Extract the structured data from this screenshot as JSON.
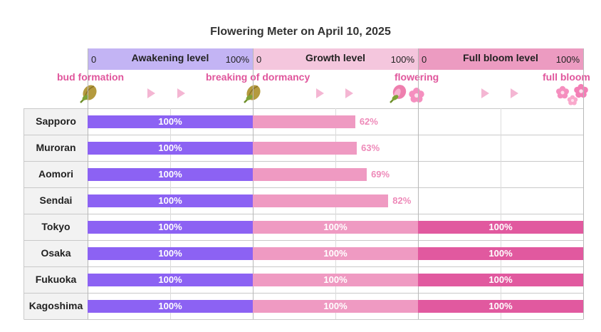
{
  "title": "Flowering Meter  on  April 10, 2025",
  "levels": [
    {
      "name": "Awakening level",
      "min_label": "0",
      "max_label": "100%",
      "color": "#c3b4f4"
    },
    {
      "name": "Growth level",
      "min_label": "0",
      "max_label": "100%",
      "color": "#f4c6dd"
    },
    {
      "name": "Full bloom level",
      "min_label": "0",
      "max_label": "100%",
      "color": "#ec9bc1"
    }
  ],
  "stages": [
    "bud formation",
    "breaking of dormancy",
    "flowering",
    "full bloom"
  ],
  "icons": [
    "bud-icon",
    "bud-icon",
    "blossom-icon",
    "cherry-blossom-icon",
    "cherry-blossoms-icon"
  ],
  "colors": {
    "awakening": "#8c62f3",
    "growth": "#ef9ac2",
    "full_bloom": "#e1599f",
    "stage_text": "#e0569c"
  },
  "chart_data": {
    "type": "bar",
    "title": "Flowering Meter  on  April 10, 2025",
    "categories": [
      "Sapporo",
      "Muroran",
      "Aomori",
      "Sendai",
      "Tokyo",
      "Osaka",
      "Fukuoka",
      "Kagoshima"
    ],
    "series": [
      {
        "name": "Awakening level",
        "values": [
          100,
          100,
          100,
          100,
          100,
          100,
          100,
          100
        ],
        "labels": [
          "100%",
          "100%",
          "100%",
          "100%",
          "100%",
          "100%",
          "100%",
          "100%"
        ]
      },
      {
        "name": "Growth level",
        "values": [
          62,
          63,
          69,
          82,
          100,
          100,
          100,
          100
        ],
        "labels": [
          "62%",
          "63%",
          "69%",
          "82%",
          "100%",
          "100%",
          "100%",
          "100%"
        ]
      },
      {
        "name": "Full bloom level",
        "values": [
          0,
          0,
          0,
          0,
          100,
          100,
          100,
          100
        ],
        "labels": [
          "",
          "",
          "",
          "",
          "100%",
          "100%",
          "100%",
          "100%"
        ]
      }
    ],
    "ylim": [
      0,
      100
    ],
    "orientation": "horizontal",
    "stacked": true
  }
}
